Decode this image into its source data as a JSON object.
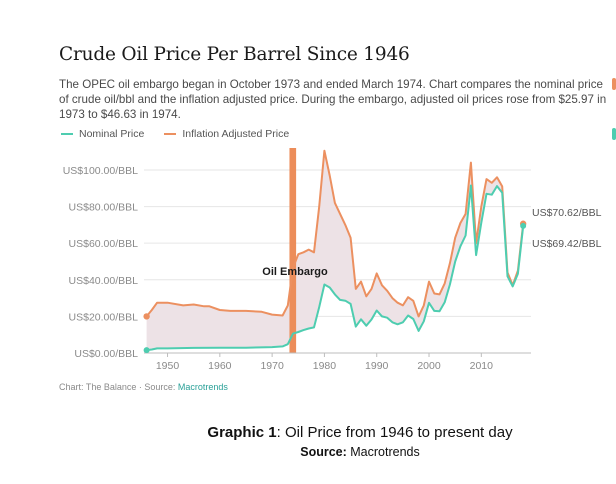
{
  "header": {
    "title": "Crude Oil Price Per Barrel Since 1946",
    "subtitle": "The OPEC oil embargo began in October 1973 and ended March 1974. Chart compares the nominal price of crude oil/bbl  and the inflation adjusted price. During the embargo, adjusted oil prices rose from $25.97 in 1973 to $46.63 in 1974."
  },
  "footer": {
    "source_prefix": "Chart: The Balance · Source: ",
    "source_link": "Macrotrends"
  },
  "caption": {
    "label": "Graphic 1",
    "text": ": Oil Price from 1946 to present day",
    "source_label": "Source:",
    "source_text": " Macrotrends"
  },
  "colors": {
    "nominal": "#4ecdb0",
    "adjusted": "#ec9060",
    "fill": "#ede2e6",
    "embargo": "#ec8d5a",
    "grid": "#e6e6e6",
    "axis_text": "#8a8a8a"
  },
  "chart_data": {
    "type": "line",
    "title": "Crude Oil Price Per Barrel Since 1946",
    "xlabel": "",
    "ylabel": "",
    "xlim": [
      1945.5,
      2019.5
    ],
    "ylim": [
      0,
      112
    ],
    "x_ticks": [
      1950,
      1960,
      1970,
      1980,
      1990,
      2000,
      2010
    ],
    "y_ticks": [
      {
        "value": 0,
        "label": "US$0.00/BBL"
      },
      {
        "value": 20,
        "label": "US$20.00/BBL"
      },
      {
        "value": 40,
        "label": "US$40.00/BBL"
      },
      {
        "value": 60,
        "label": "US$60.00/BBL"
      },
      {
        "value": 80,
        "label": "US$80.00/BBL"
      },
      {
        "value": 100,
        "label": "US$100.00/BBL"
      }
    ],
    "grid": true,
    "legend": "top-left",
    "series": [
      {
        "name": "Nominal Price",
        "color": "#4ecdb0",
        "points": [
          [
            1946,
            1.6
          ],
          [
            1947,
            1.9
          ],
          [
            1948,
            2.5
          ],
          [
            1950,
            2.5
          ],
          [
            1955,
            2.8
          ],
          [
            1960,
            2.9
          ],
          [
            1965,
            2.9
          ],
          [
            1970,
            3.2
          ],
          [
            1972,
            3.6
          ],
          [
            1973,
            4.8
          ],
          [
            1974,
            10.6
          ],
          [
            1975,
            11.5
          ],
          [
            1976,
            12.5
          ],
          [
            1977,
            13.4
          ],
          [
            1978,
            14.0
          ],
          [
            1979,
            25.1
          ],
          [
            1980,
            37.4
          ],
          [
            1981,
            35.8
          ],
          [
            1982,
            32.0
          ],
          [
            1983,
            29.0
          ],
          [
            1984,
            28.6
          ],
          [
            1985,
            26.8
          ],
          [
            1986,
            14.4
          ],
          [
            1987,
            18.4
          ],
          [
            1988,
            14.9
          ],
          [
            1989,
            18.3
          ],
          [
            1990,
            23.2
          ],
          [
            1991,
            20.0
          ],
          [
            1992,
            19.3
          ],
          [
            1993,
            16.8
          ],
          [
            1994,
            15.7
          ],
          [
            1995,
            16.8
          ],
          [
            1996,
            20.5
          ],
          [
            1997,
            18.6
          ],
          [
            1998,
            12.1
          ],
          [
            1999,
            17.3
          ],
          [
            2000,
            27.4
          ],
          [
            2001,
            23.0
          ],
          [
            2002,
            22.8
          ],
          [
            2003,
            27.7
          ],
          [
            2004,
            37.4
          ],
          [
            2005,
            50.0
          ],
          [
            2006,
            58.3
          ],
          [
            2007,
            64.2
          ],
          [
            2008,
            91.5
          ],
          [
            2009,
            53.5
          ],
          [
            2010,
            71.2
          ],
          [
            2011,
            87.0
          ],
          [
            2012,
            86.5
          ],
          [
            2013,
            91.2
          ],
          [
            2014,
            87.5
          ],
          [
            2015,
            41.9
          ],
          [
            2016,
            36.4
          ],
          [
            2017,
            43.3
          ],
          [
            2018,
            69.42
          ]
        ]
      },
      {
        "name": "Inflation Adjusted Price",
        "color": "#ec9060",
        "points": [
          [
            1946,
            20.0
          ],
          [
            1947,
            23.5
          ],
          [
            1948,
            27.5
          ],
          [
            1950,
            27.5
          ],
          [
            1953,
            26.0
          ],
          [
            1955,
            26.5
          ],
          [
            1957,
            25.5
          ],
          [
            1958,
            25.5
          ],
          [
            1960,
            23.5
          ],
          [
            1962,
            23.0
          ],
          [
            1965,
            23.0
          ],
          [
            1968,
            22.5
          ],
          [
            1970,
            21.0
          ],
          [
            1972,
            20.5
          ],
          [
            1973,
            25.97
          ],
          [
            1974,
            46.63
          ],
          [
            1975,
            54.0
          ],
          [
            1976,
            55.0
          ],
          [
            1977,
            56.5
          ],
          [
            1978,
            55.0
          ],
          [
            1979,
            80.0
          ],
          [
            1980,
            110.5
          ],
          [
            1981,
            97.0
          ],
          [
            1982,
            82.0
          ],
          [
            1983,
            76.0
          ],
          [
            1984,
            70.0
          ],
          [
            1985,
            63.0
          ],
          [
            1986,
            35.0
          ],
          [
            1987,
            39.0
          ],
          [
            1988,
            31.0
          ],
          [
            1989,
            35.0
          ],
          [
            1990,
            43.5
          ],
          [
            1991,
            37.0
          ],
          [
            1992,
            34.0
          ],
          [
            1993,
            30.0
          ],
          [
            1994,
            27.5
          ],
          [
            1995,
            26.0
          ],
          [
            1996,
            30.5
          ],
          [
            1997,
            28.5
          ],
          [
            1998,
            20.0
          ],
          [
            1999,
            26.0
          ],
          [
            2000,
            39.0
          ],
          [
            2001,
            32.5
          ],
          [
            2002,
            32.0
          ],
          [
            2003,
            38.0
          ],
          [
            2004,
            49.0
          ],
          [
            2005,
            63.0
          ],
          [
            2006,
            71.0
          ],
          [
            2007,
            76.0
          ],
          [
            2008,
            104.0
          ],
          [
            2009,
            60.0
          ],
          [
            2010,
            80.0
          ],
          [
            2011,
            95.0
          ],
          [
            2012,
            93.0
          ],
          [
            2013,
            96.0
          ],
          [
            2014,
            91.0
          ],
          [
            2015,
            44.0
          ],
          [
            2016,
            37.0
          ],
          [
            2017,
            45.0
          ],
          [
            2018,
            70.62
          ]
        ]
      }
    ],
    "annotations": [
      {
        "text": "Oil Embargo",
        "x_start": 1973.6,
        "x_end": 1974.3
      },
      {
        "text": "US$70.62/BBL",
        "series": "Inflation Adjusted Price",
        "x": 2018,
        "y": 70.62
      },
      {
        "text": "US$69.42/BBL",
        "series": "Nominal Price",
        "x": 2018,
        "y": 69.42
      }
    ]
  }
}
